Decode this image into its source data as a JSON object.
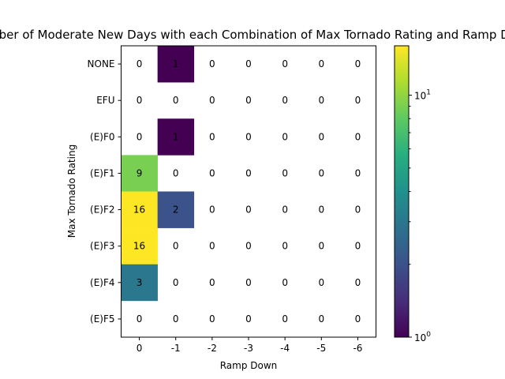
{
  "chart_data": {
    "type": "heatmap",
    "title": "Number of Moderate New Days with each Combination of Max Tornado Rating and Ramp Down",
    "xlabel": "Ramp Down",
    "ylabel": "Max Tornado Rating",
    "x_categories": [
      "0",
      "-1",
      "-2",
      "-3",
      "-4",
      "-5",
      "-6"
    ],
    "y_categories": [
      "NONE",
      "EFU",
      "(E)F0",
      "(E)F1",
      "(E)F2",
      "(E)F3",
      "(E)F4",
      "(E)F5"
    ],
    "values": [
      [
        0,
        1,
        0,
        0,
        0,
        0,
        0
      ],
      [
        0,
        0,
        0,
        0,
        0,
        0,
        0
      ],
      [
        0,
        1,
        0,
        0,
        0,
        0,
        0
      ],
      [
        9,
        0,
        0,
        0,
        0,
        0,
        0
      ],
      [
        16,
        2,
        0,
        0,
        0,
        0,
        0
      ],
      [
        16,
        0,
        0,
        0,
        0,
        0,
        0
      ],
      [
        3,
        0,
        0,
        0,
        0,
        0,
        0
      ],
      [
        0,
        0,
        0,
        0,
        0,
        0,
        0
      ]
    ],
    "colorscale": "viridis",
    "color_scale_type": "log",
    "zero_color": "#ffffff",
    "vmin": 1,
    "vmax": 16,
    "colorbar_ticks": [
      "10^0",
      "10^1"
    ]
  }
}
